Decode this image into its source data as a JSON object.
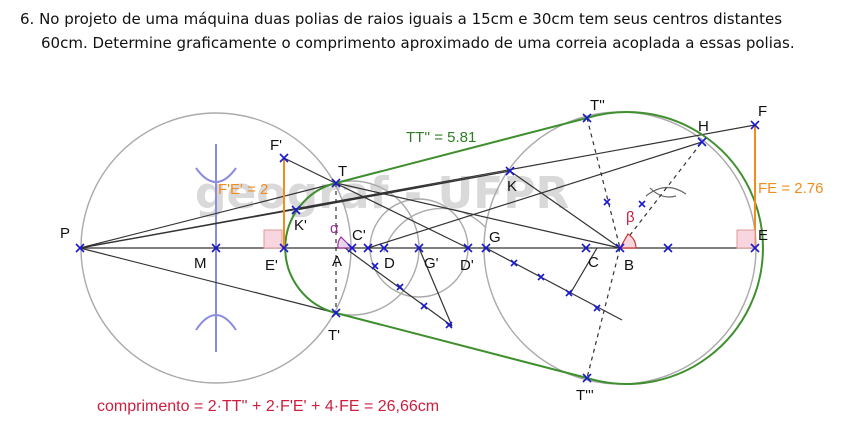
{
  "statement": {
    "line1": "6. No projeto de uma máquina duas polias de raios iguais a 15cm e 30cm tem seus centros distantes",
    "line2": "60cm. Determine graficamente o comprimento aproximado de uma correia acoplada a essas polias."
  },
  "figure": {
    "watermark": "geograf - UFPR",
    "labels": {
      "P": "P",
      "M": "M",
      "Ep": "E'",
      "Kp": "K'",
      "Fp": "F'",
      "T": "T",
      "Tp": "T'",
      "A": "A",
      "Cp": "C'",
      "D": "D",
      "Gp": "G'",
      "Dp": "D'",
      "G": "G",
      "C": "C",
      "B": "B",
      "E": "E",
      "H": "H",
      "F": "F",
      "K": "K",
      "Tpp": "T''",
      "Tppp": "T'''",
      "alpha": "α",
      "beta": "β"
    },
    "measures": {
      "tt": "TT'' = 5.81",
      "fe_small": "F'E' = 2",
      "fe_big": "FE = 2.76"
    },
    "formula": "comprimento = 2·TT'' + 2·F'E' + 4·FE = 26,66cm",
    "colors": {
      "construction": "#aaaaaa",
      "line": "#333333",
      "point": "#1a1acc",
      "belt": "#3f8f2f",
      "measure": "#f28c1e",
      "formula": "#cc1f3f",
      "angle": "#993399",
      "mediatrix": "#8c8cdf"
    }
  }
}
